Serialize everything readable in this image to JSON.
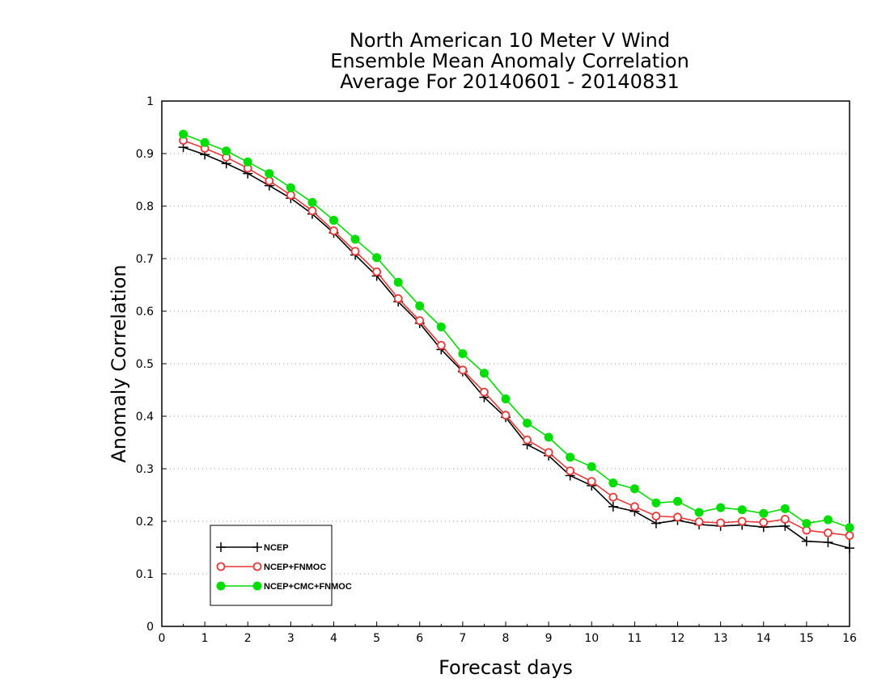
{
  "chart_data": {
    "type": "line",
    "title": [
      "North American 10 Meter V Wind",
      "Ensemble Mean Anomaly Correlation",
      "Average For 20140601 - 20140831"
    ],
    "xlabel": "Forecast days",
    "ylabel": "Anomaly Correlation",
    "xlim": [
      0,
      16
    ],
    "ylim": [
      0,
      1
    ],
    "xticks": [
      0,
      1,
      2,
      3,
      4,
      5,
      6,
      7,
      8,
      9,
      10,
      11,
      12,
      13,
      14,
      15,
      16
    ],
    "yticks": [
      0,
      0.1,
      0.2,
      0.3,
      0.4,
      0.5,
      0.6,
      0.7,
      0.8,
      0.9,
      1
    ],
    "grid": "horizontal dotted",
    "legend_position": "bottom-left",
    "x": [
      0.5,
      1,
      1.5,
      2,
      2.5,
      3,
      3.5,
      4,
      4.5,
      5,
      5.5,
      6,
      6.5,
      7,
      7.5,
      8,
      8.5,
      9,
      9.5,
      10,
      10.5,
      11,
      11.5,
      12,
      12.5,
      13,
      13.5,
      14,
      14.5,
      15,
      15.5,
      16
    ],
    "series": [
      {
        "name": "NCEP",
        "color": "#000000",
        "marker": "plus",
        "values": [
          0.912,
          0.898,
          0.881,
          0.862,
          0.839,
          0.815,
          0.785,
          0.749,
          0.707,
          0.667,
          0.618,
          0.577,
          0.527,
          0.485,
          0.436,
          0.398,
          0.346,
          0.325,
          0.287,
          0.268,
          0.228,
          0.219,
          0.196,
          0.202,
          0.194,
          0.191,
          0.193,
          0.189,
          0.191,
          0.162,
          0.16,
          0.149
        ]
      },
      {
        "name": "NCEP+FNMOC",
        "color": "#e83838",
        "marker": "open-circle",
        "values": [
          0.925,
          0.91,
          0.893,
          0.872,
          0.848,
          0.821,
          0.791,
          0.753,
          0.714,
          0.675,
          0.624,
          0.582,
          0.535,
          0.488,
          0.446,
          0.402,
          0.355,
          0.331,
          0.296,
          0.276,
          0.246,
          0.228,
          0.21,
          0.208,
          0.199,
          0.197,
          0.2,
          0.198,
          0.204,
          0.183,
          0.178,
          0.173
        ]
      },
      {
        "name": "NCEP+CMC+FNMOC",
        "color": "#00dd00",
        "marker": "filled-circle",
        "values": [
          0.937,
          0.921,
          0.905,
          0.884,
          0.862,
          0.835,
          0.807,
          0.773,
          0.737,
          0.702,
          0.655,
          0.61,
          0.57,
          0.519,
          0.482,
          0.433,
          0.387,
          0.36,
          0.322,
          0.304,
          0.273,
          0.262,
          0.235,
          0.238,
          0.217,
          0.226,
          0.222,
          0.215,
          0.224,
          0.196,
          0.203,
          0.188
        ]
      }
    ]
  }
}
